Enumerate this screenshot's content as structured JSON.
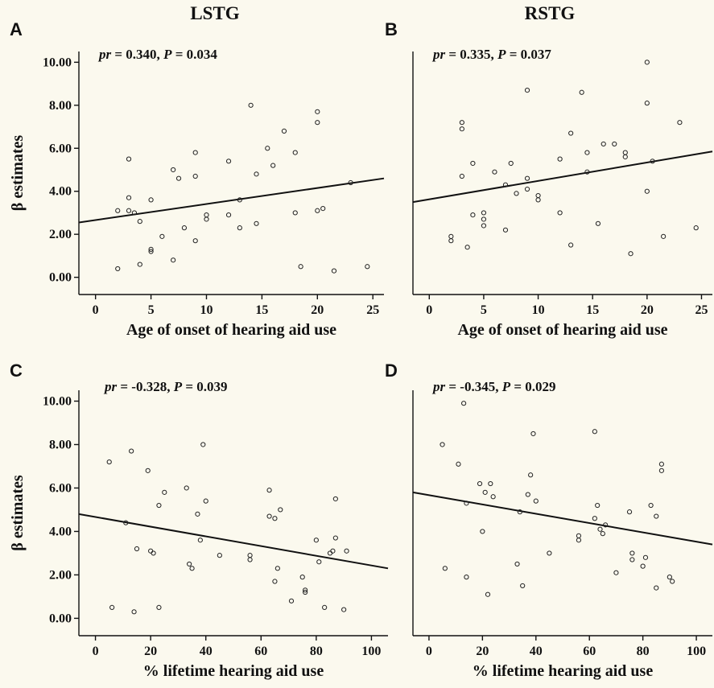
{
  "figure": {
    "column_titles": [
      "LSTG",
      "RSTG"
    ]
  },
  "chart_data": [
    {
      "id": "A",
      "type": "scatter",
      "letter": "A",
      "column": 0,
      "stat_pr": "0.340",
      "stat_p": "0.034",
      "xlabel": "Age of onset of hearing aid use",
      "ylabel": "β estimates",
      "xlim": [
        -1.5,
        26
      ],
      "ylim": [
        -0.8,
        10.5
      ],
      "xticks": [
        0,
        5,
        10,
        15,
        20,
        25
      ],
      "yticks": [
        0,
        2,
        4,
        6,
        8,
        10
      ],
      "ytick_labels": [
        "0.00",
        "2.00",
        "4.00",
        "6.00",
        "8.00",
        "10.00"
      ],
      "fit_line": [
        [
          -1.5,
          2.55
        ],
        [
          26,
          4.6
        ]
      ],
      "points": [
        [
          2,
          3.1
        ],
        [
          2,
          0.4
        ],
        [
          3,
          5.5
        ],
        [
          3,
          3.7
        ],
        [
          3,
          3.1
        ],
        [
          3.5,
          3.0
        ],
        [
          4,
          2.6
        ],
        [
          4,
          0.6
        ],
        [
          5,
          3.6
        ],
        [
          5,
          1.3
        ],
        [
          5,
          1.2
        ],
        [
          6,
          1.9
        ],
        [
          7,
          5.0
        ],
        [
          7,
          0.8
        ],
        [
          7.5,
          4.6
        ],
        [
          8,
          2.3
        ],
        [
          9,
          5.8
        ],
        [
          9,
          4.7
        ],
        [
          9,
          1.7
        ],
        [
          10,
          2.9
        ],
        [
          10,
          2.7
        ],
        [
          12,
          5.4
        ],
        [
          12,
          2.9
        ],
        [
          13,
          3.6
        ],
        [
          13,
          2.3
        ],
        [
          14,
          8.0
        ],
        [
          14.5,
          4.8
        ],
        [
          14.5,
          2.5
        ],
        [
          15.5,
          6.0
        ],
        [
          16,
          5.2
        ],
        [
          17,
          6.8
        ],
        [
          18,
          5.8
        ],
        [
          18,
          3.0
        ],
        [
          18.5,
          0.5
        ],
        [
          20,
          7.7
        ],
        [
          20,
          7.2
        ],
        [
          20,
          3.1
        ],
        [
          20.5,
          3.2
        ],
        [
          21.5,
          0.3
        ],
        [
          23,
          4.4
        ],
        [
          24.5,
          0.5
        ]
      ]
    },
    {
      "id": "B",
      "type": "scatter",
      "letter": "B",
      "column": 1,
      "stat_pr": "0.335",
      "stat_p": "0.037",
      "xlabel": "Age of onset of hearing aid use",
      "ylabel": "",
      "xlim": [
        -1.5,
        26
      ],
      "ylim": [
        -0.8,
        10.5
      ],
      "xticks": [
        0,
        5,
        10,
        15,
        20,
        25
      ],
      "yticks": [],
      "ytick_labels": [],
      "fit_line": [
        [
          -1.5,
          3.5
        ],
        [
          26,
          5.85
        ]
      ],
      "points": [
        [
          2,
          1.9
        ],
        [
          2,
          1.7
        ],
        [
          3,
          7.2
        ],
        [
          3,
          6.9
        ],
        [
          3,
          4.7
        ],
        [
          3.5,
          1.4
        ],
        [
          4,
          5.3
        ],
        [
          4,
          2.9
        ],
        [
          5,
          3.0
        ],
        [
          5,
          2.7
        ],
        [
          5,
          2.4
        ],
        [
          6,
          4.9
        ],
        [
          7,
          4.3
        ],
        [
          7,
          2.2
        ],
        [
          7.5,
          5.3
        ],
        [
          8,
          3.9
        ],
        [
          9,
          8.7
        ],
        [
          9,
          4.6
        ],
        [
          9,
          4.1
        ],
        [
          10,
          3.8
        ],
        [
          10,
          3.6
        ],
        [
          12,
          5.5
        ],
        [
          12,
          3.0
        ],
        [
          13,
          6.7
        ],
        [
          13,
          1.5
        ],
        [
          14,
          8.6
        ],
        [
          14.5,
          5.8
        ],
        [
          14.5,
          4.9
        ],
        [
          15.5,
          2.5
        ],
        [
          16,
          6.2
        ],
        [
          17,
          6.2
        ],
        [
          18,
          5.8
        ],
        [
          18,
          5.6
        ],
        [
          18.5,
          1.1
        ],
        [
          20,
          10.0
        ],
        [
          20,
          8.1
        ],
        [
          20,
          4.0
        ],
        [
          20.5,
          5.4
        ],
        [
          21.5,
          1.9
        ],
        [
          23,
          7.2
        ],
        [
          24.5,
          2.3
        ]
      ]
    },
    {
      "id": "C",
      "type": "scatter",
      "letter": "C",
      "column": 0,
      "stat_pr": "-0.328",
      "stat_p": "0.039",
      "xlabel": "% lifetime hearing aid use",
      "ylabel": "β estimates",
      "xlim": [
        -6,
        106
      ],
      "ylim": [
        -0.8,
        10.5
      ],
      "xticks": [
        0,
        20,
        40,
        60,
        80,
        100
      ],
      "yticks": [
        0,
        2,
        4,
        6,
        8,
        10
      ],
      "ytick_labels": [
        "0.00",
        "2.00",
        "4.00",
        "6.00",
        "8.00",
        "10.00"
      ],
      "fit_line": [
        [
          -6,
          4.8
        ],
        [
          106,
          2.3
        ]
      ],
      "points": [
        [
          5,
          7.2
        ],
        [
          6,
          0.5
        ],
        [
          11,
          4.4
        ],
        [
          13,
          7.7
        ],
        [
          14,
          0.3
        ],
        [
          15,
          3.2
        ],
        [
          19,
          6.8
        ],
        [
          20,
          3.1
        ],
        [
          21,
          3.0
        ],
        [
          23,
          0.5
        ],
        [
          23,
          5.2
        ],
        [
          25,
          5.8
        ],
        [
          33,
          6.0
        ],
        [
          34,
          2.5
        ],
        [
          35,
          2.3
        ],
        [
          37,
          4.8
        ],
        [
          38,
          3.6
        ],
        [
          39,
          8.0
        ],
        [
          40,
          5.4
        ],
        [
          45,
          2.9
        ],
        [
          56,
          2.9
        ],
        [
          56,
          2.7
        ],
        [
          63,
          5.9
        ],
        [
          63,
          4.7
        ],
        [
          65,
          4.6
        ],
        [
          65,
          1.7
        ],
        [
          66,
          2.3
        ],
        [
          67,
          5.0
        ],
        [
          71,
          0.8
        ],
        [
          75,
          1.9
        ],
        [
          76,
          1.3
        ],
        [
          76,
          1.2
        ],
        [
          80,
          3.6
        ],
        [
          81,
          2.6
        ],
        [
          83,
          0.5
        ],
        [
          85,
          3.0
        ],
        [
          86,
          3.1
        ],
        [
          87,
          5.5
        ],
        [
          87,
          3.7
        ],
        [
          90,
          0.4
        ],
        [
          91,
          3.1
        ]
      ]
    },
    {
      "id": "D",
      "type": "scatter",
      "letter": "D",
      "column": 1,
      "stat_pr": "-0.345",
      "stat_p": "0.029",
      "xlabel": "% lifetime hearing aid use",
      "ylabel": "",
      "xlim": [
        -6,
        106
      ],
      "ylim": [
        -0.8,
        10.5
      ],
      "xticks": [
        0,
        20,
        40,
        60,
        80,
        100
      ],
      "yticks": [],
      "ytick_labels": [],
      "fit_line": [
        [
          -6,
          5.8
        ],
        [
          106,
          3.4
        ]
      ],
      "points": [
        [
          5,
          8.0
        ],
        [
          6,
          2.3
        ],
        [
          11,
          7.1
        ],
        [
          13,
          9.9
        ],
        [
          14,
          5.3
        ],
        [
          14,
          1.9
        ],
        [
          19,
          6.2
        ],
        [
          20,
          4.0
        ],
        [
          21,
          5.8
        ],
        [
          22,
          1.1
        ],
        [
          23,
          6.2
        ],
        [
          24,
          5.6
        ],
        [
          33,
          2.5
        ],
        [
          34,
          4.9
        ],
        [
          35,
          1.5
        ],
        [
          37,
          5.7
        ],
        [
          38,
          6.6
        ],
        [
          39,
          8.5
        ],
        [
          40,
          5.4
        ],
        [
          45,
          3.0
        ],
        [
          56,
          3.8
        ],
        [
          56,
          3.6
        ],
        [
          62,
          8.6
        ],
        [
          62,
          4.6
        ],
        [
          63,
          5.2
        ],
        [
          64,
          4.1
        ],
        [
          65,
          3.9
        ],
        [
          66,
          4.3
        ],
        [
          70,
          2.1
        ],
        [
          75,
          4.9
        ],
        [
          76,
          3.0
        ],
        [
          76,
          2.7
        ],
        [
          80,
          2.4
        ],
        [
          81,
          2.8
        ],
        [
          83,
          5.2
        ],
        [
          85,
          4.7
        ],
        [
          85,
          1.4
        ],
        [
          87,
          7.1
        ],
        [
          87,
          6.8
        ],
        [
          90,
          1.9
        ],
        [
          91,
          1.7
        ]
      ]
    }
  ]
}
